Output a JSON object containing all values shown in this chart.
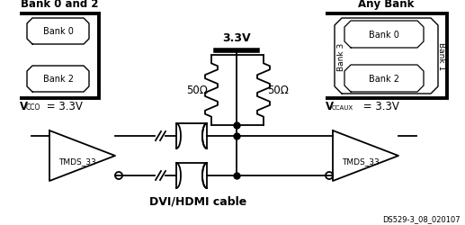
{
  "bg_color": "#ffffff",
  "fig_w": 5.17,
  "fig_h": 2.51,
  "dpi": 100,
  "text_bank0and2": "Bank 0 and 2",
  "text_anybank": "Any Bank",
  "text_3v3": "3.3V",
  "text_50ohm_left": "50Ω",
  "text_50ohm_right": "50Ω",
  "text_tmds_left": "TMDS_33",
  "text_tmds_right": "TMDS_33",
  "text_dvi": "DVI/HDMI cable",
  "text_ds": "DS529-3_08_020107",
  "text_bank0_left": "Bank 0",
  "text_bank2_left": "Bank 2",
  "text_bank0_right": "Bank 0",
  "text_bank1_right": "Bank 1",
  "text_bank2_right": "Bank 2",
  "text_bank3_right": "Bank 3"
}
